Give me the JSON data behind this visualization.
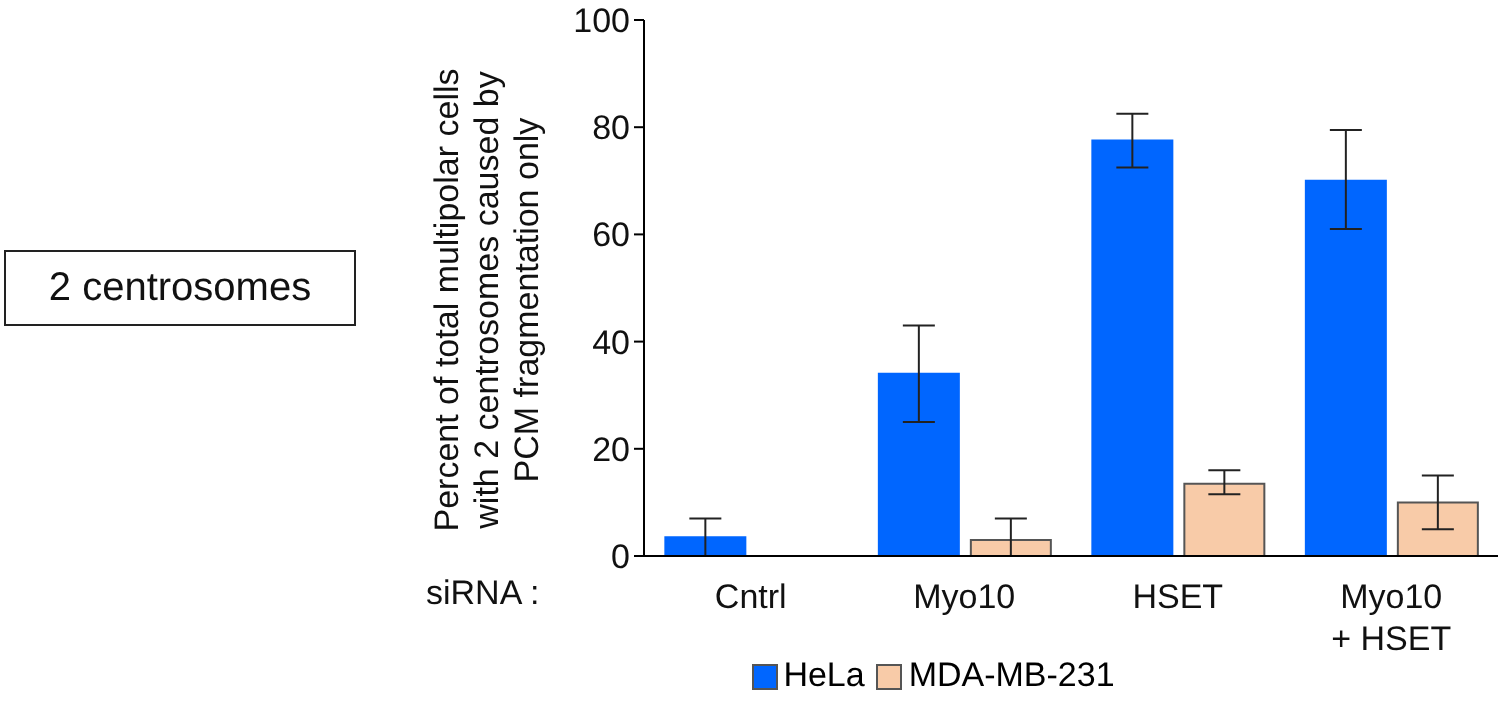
{
  "chart_data": {
    "type": "bar",
    "categories": [
      "Cntrl",
      "Myo10",
      "HSET",
      "Myo10\n+ HSET"
    ],
    "series": [
      {
        "name": "HeLa",
        "color": "#0066ff",
        "values": [
          3.5,
          34,
          77.5,
          70
        ],
        "errors": [
          [
            0,
            7
          ],
          [
            25,
            43
          ],
          [
            72.5,
            82.5
          ],
          [
            61,
            79.5
          ]
        ]
      },
      {
        "name": "MDA-MB-231",
        "color": "#f8cba8",
        "values": [
          0,
          3,
          13.5,
          10
        ],
        "errors": [
          null,
          [
            0,
            7
          ],
          [
            11.5,
            16
          ],
          [
            5,
            15
          ]
        ]
      }
    ],
    "xlabel": "siRNA :",
    "ylabel": "Percent of total multipolar cells with 2 centrosomes caused by PCM fragmentation only",
    "annotations": [
      "2 centrosomes"
    ],
    "ylim": [
      0,
      100
    ],
    "yticks": [
      0,
      20,
      40,
      60,
      80,
      100
    ],
    "grid": false,
    "legend": "bottom"
  }
}
